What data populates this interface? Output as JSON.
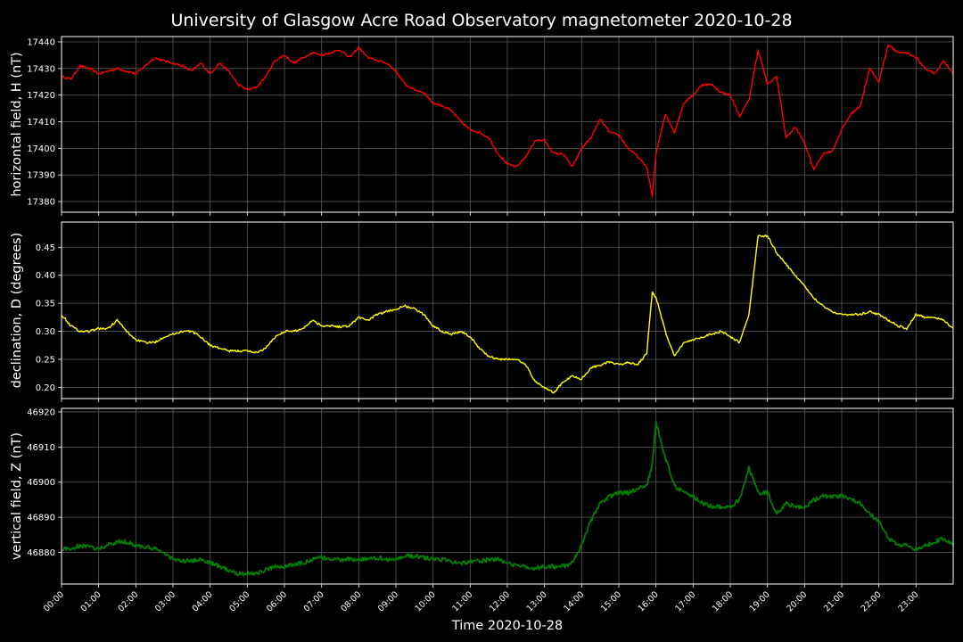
{
  "title": "University of Glasgow Acre Road Observatory magnetometer 2020-10-28",
  "chart_data": [
    {
      "type": "line",
      "ylabel": "horizontal field, H (nT)",
      "ylim": [
        17376,
        17442
      ],
      "yticks": [
        17380,
        17390,
        17400,
        17410,
        17420,
        17430,
        17440
      ],
      "grid": true,
      "color": "#ff0000",
      "x_hours": [
        0,
        0.25,
        0.5,
        0.75,
        1,
        1.25,
        1.5,
        1.75,
        2,
        2.25,
        2.5,
        2.75,
        3,
        3.25,
        3.5,
        3.75,
        4,
        4.25,
        4.5,
        4.75,
        5,
        5.25,
        5.5,
        5.75,
        6,
        6.25,
        6.5,
        6.75,
        7,
        7.25,
        7.5,
        7.75,
        8,
        8.25,
        8.5,
        8.75,
        9,
        9.25,
        9.5,
        9.75,
        10,
        10.25,
        10.5,
        10.75,
        11,
        11.25,
        11.5,
        11.75,
        12,
        12.25,
        12.5,
        12.75,
        13,
        13.25,
        13.5,
        13.75,
        14,
        14.25,
        14.5,
        14.75,
        15,
        15.25,
        15.5,
        15.75,
        15.9,
        16,
        16.25,
        16.5,
        16.75,
        17,
        17.25,
        17.5,
        17.75,
        18,
        18.25,
        18.5,
        18.75,
        19,
        19.25,
        19.5,
        19.75,
        20,
        20.25,
        20.5,
        20.75,
        21,
        21.25,
        21.5,
        21.75,
        22,
        22.25,
        22.5,
        22.75,
        23,
        23.25,
        23.5,
        23.75,
        24
      ],
      "values": [
        17427,
        17426,
        17431,
        17430,
        17428,
        17429,
        17430,
        17429,
        17428,
        17431,
        17434,
        17433,
        17432,
        17431,
        17429,
        17432,
        17428,
        17432,
        17429,
        17424,
        17422,
        17423,
        17427,
        17433,
        17435,
        17432,
        17434,
        17436,
        17435,
        17436,
        17437,
        17434,
        17438,
        17434,
        17433,
        17432,
        17429,
        17424,
        17422,
        17421,
        17417,
        17416,
        17414,
        17410,
        17407,
        17406,
        17404,
        17398,
        17394,
        17393,
        17397,
        17403,
        17403,
        17398,
        17398,
        17393,
        17400,
        17404,
        17411,
        17406,
        17405,
        17400,
        17397,
        17393,
        17382,
        17398,
        17413,
        17406,
        17417,
        17420,
        17424,
        17424,
        17421,
        17420,
        17412,
        17418,
        17437,
        17424,
        17427,
        17404,
        17408,
        17402,
        17392,
        17398,
        17399,
        17407,
        17413,
        17416,
        17430,
        17425,
        17439,
        17436,
        17436,
        17434,
        17430,
        17428,
        17433,
        17428
      ]
    },
    {
      "type": "line",
      "ylabel": "declination, D (degrees)",
      "ylim": [
        0.18,
        0.495
      ],
      "yticks": [
        0.2,
        0.25,
        0.3,
        0.35,
        0.4,
        0.45
      ],
      "grid": true,
      "color": "#ffff00",
      "x_hours": [
        0,
        0.25,
        0.5,
        0.75,
        1,
        1.25,
        1.5,
        1.75,
        2,
        2.25,
        2.5,
        2.75,
        3,
        3.25,
        3.5,
        3.75,
        4,
        4.25,
        4.5,
        4.75,
        5,
        5.25,
        5.5,
        5.75,
        6,
        6.25,
        6.5,
        6.75,
        7,
        7.25,
        7.5,
        7.75,
        8,
        8.25,
        8.5,
        8.75,
        9,
        9.25,
        9.5,
        9.75,
        10,
        10.25,
        10.5,
        10.75,
        11,
        11.25,
        11.5,
        11.75,
        12,
        12.25,
        12.5,
        12.75,
        13,
        13.25,
        13.5,
        13.75,
        14,
        14.25,
        14.5,
        14.75,
        15,
        15.25,
        15.5,
        15.75,
        15.9,
        16,
        16.25,
        16.5,
        16.75,
        17,
        17.25,
        17.5,
        17.75,
        18,
        18.25,
        18.5,
        18.75,
        19,
        19.25,
        19.5,
        19.75,
        20,
        20.25,
        20.5,
        20.75,
        21,
        21.25,
        21.5,
        21.75,
        22,
        22.25,
        22.5,
        22.75,
        23,
        23.25,
        23.5,
        23.75,
        24
      ],
      "values": [
        0.33,
        0.31,
        0.3,
        0.3,
        0.305,
        0.305,
        0.32,
        0.3,
        0.285,
        0.28,
        0.28,
        0.29,
        0.295,
        0.3,
        0.3,
        0.29,
        0.275,
        0.27,
        0.265,
        0.265,
        0.265,
        0.262,
        0.27,
        0.29,
        0.3,
        0.3,
        0.305,
        0.32,
        0.31,
        0.31,
        0.308,
        0.31,
        0.325,
        0.32,
        0.33,
        0.335,
        0.34,
        0.345,
        0.34,
        0.33,
        0.31,
        0.3,
        0.295,
        0.3,
        0.29,
        0.27,
        0.255,
        0.25,
        0.25,
        0.25,
        0.24,
        0.21,
        0.2,
        0.19,
        0.21,
        0.22,
        0.215,
        0.235,
        0.24,
        0.245,
        0.24,
        0.245,
        0.24,
        0.26,
        0.37,
        0.36,
        0.3,
        0.255,
        0.28,
        0.285,
        0.29,
        0.295,
        0.3,
        0.29,
        0.28,
        0.33,
        0.47,
        0.47,
        0.44,
        0.42,
        0.4,
        0.38,
        0.36,
        0.345,
        0.335,
        0.33,
        0.33,
        0.33,
        0.335,
        0.33,
        0.32,
        0.31,
        0.305,
        0.33,
        0.325,
        0.325,
        0.32,
        0.305
      ]
    },
    {
      "type": "line",
      "ylabel": "vertical field, Z (nT)",
      "ylim": [
        46871,
        46921
      ],
      "yticks": [
        46880,
        46890,
        46900,
        46910,
        46920
      ],
      "grid": true,
      "color": "#008000",
      "x_hours": [
        0,
        0.25,
        0.5,
        0.75,
        1,
        1.25,
        1.5,
        1.75,
        2,
        2.25,
        2.5,
        2.75,
        3,
        3.25,
        3.5,
        3.75,
        4,
        4.25,
        4.5,
        4.75,
        5,
        5.25,
        5.5,
        5.75,
        6,
        6.25,
        6.5,
        6.75,
        7,
        7.25,
        7.5,
        7.75,
        8,
        8.25,
        8.5,
        8.75,
        9,
        9.25,
        9.5,
        9.75,
        10,
        10.25,
        10.5,
        10.75,
        11,
        11.25,
        11.5,
        11.75,
        12,
        12.25,
        12.5,
        12.75,
        13,
        13.25,
        13.5,
        13.75,
        14,
        14.25,
        14.5,
        14.75,
        15,
        15.25,
        15.5,
        15.75,
        15.9,
        16,
        16.25,
        16.5,
        16.75,
        17,
        17.25,
        17.5,
        17.75,
        18,
        18.25,
        18.5,
        18.75,
        19,
        19.25,
        19.5,
        19.75,
        20,
        20.25,
        20.5,
        20.75,
        21,
        21.25,
        21.5,
        21.75,
        22,
        22.25,
        22.5,
        22.75,
        23,
        23.25,
        23.5,
        23.75,
        24
      ],
      "values": [
        46881,
        46881,
        46882,
        46881.5,
        46881,
        46882,
        46883,
        46883,
        46882,
        46881.5,
        46881,
        46880,
        46878,
        46877.5,
        46877.5,
        46878,
        46877,
        46876,
        46875,
        46874,
        46874,
        46874,
        46875,
        46876,
        46876,
        46876.5,
        46877,
        46878,
        46878.5,
        46878,
        46878,
        46878,
        46878,
        46878,
        46878.5,
        46878,
        46878,
        46879,
        46879,
        46878.5,
        46878,
        46878,
        46877.5,
        46877,
        46877.5,
        46877.5,
        46878,
        46878,
        46877,
        46876,
        46876,
        46875.5,
        46876,
        46876,
        46876,
        46877,
        46882,
        46889,
        46894,
        46896,
        46897,
        46897,
        46898,
        46899,
        46905,
        46917,
        46907,
        46899,
        46897,
        46896,
        46894,
        46893,
        46893,
        46893,
        46895,
        46904,
        46897,
        46897,
        46891,
        46894,
        46893,
        46893,
        46895,
        46896,
        46896,
        46896,
        46895,
        46894,
        46891,
        46889,
        46884,
        46882,
        46882,
        46881,
        46882,
        46883,
        46884,
        46882
      ]
    }
  ],
  "xaxis": {
    "label": "Time 2020-10-28",
    "tick_labels": [
      "00:00",
      "01:00",
      "02:00",
      "03:00",
      "04:00",
      "05:00",
      "06:00",
      "07:00",
      "08:00",
      "09:00",
      "10:00",
      "11:00",
      "12:00",
      "13:00",
      "14:00",
      "15:00",
      "16:00",
      "17:00",
      "18:00",
      "19:00",
      "20:00",
      "21:00",
      "22:00",
      "23:00"
    ],
    "range_hours": [
      0,
      24
    ]
  }
}
